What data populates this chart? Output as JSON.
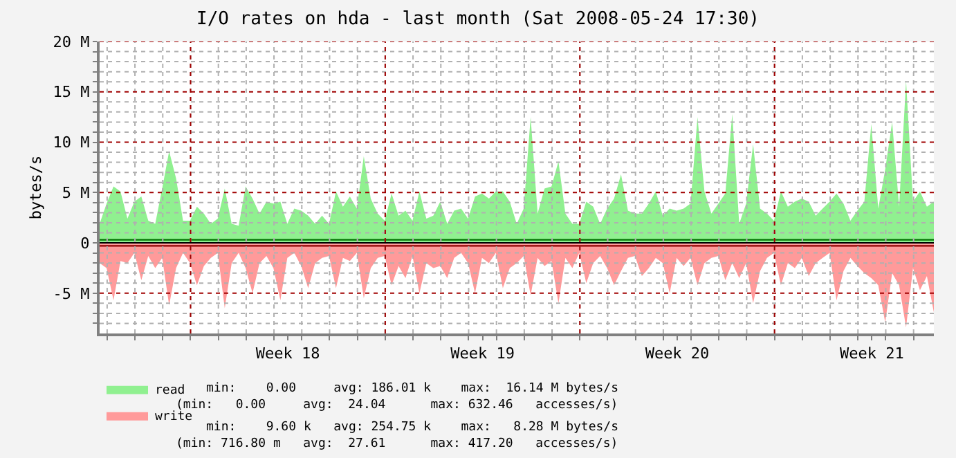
{
  "chart_data": {
    "type": "area",
    "title": "I/O rates on hda - last month (Sat 2008-05-24 17:30)",
    "ylabel": "bytes/s",
    "x": [
      "2008-04-24T17:30",
      "2008-04-24T23:30",
      "2008-04-25T05:30",
      "2008-04-25T11:30",
      "2008-04-25T17:30",
      "2008-04-25T23:30",
      "2008-04-26T05:30",
      "2008-04-26T11:30",
      "2008-04-26T17:30",
      "2008-04-26T23:30",
      "2008-04-27T05:30",
      "2008-04-27T11:30",
      "2008-04-27T17:30",
      "2008-04-27T23:30",
      "2008-04-28T05:30",
      "2008-04-28T11:30",
      "2008-04-28T17:30",
      "2008-04-28T23:30",
      "2008-04-29T05:30",
      "2008-04-29T11:30",
      "2008-04-29T17:30",
      "2008-04-29T23:30",
      "2008-04-30T05:30",
      "2008-04-30T11:30",
      "2008-04-30T17:30",
      "2008-04-30T23:30",
      "2008-05-01T05:30",
      "2008-05-01T11:30",
      "2008-05-01T17:30",
      "2008-05-01T23:30",
      "2008-05-02T05:30",
      "2008-05-02T11:30",
      "2008-05-02T17:30",
      "2008-05-02T23:30",
      "2008-05-03T05:30",
      "2008-05-03T11:30",
      "2008-05-03T17:30",
      "2008-05-03T23:30",
      "2008-05-04T05:30",
      "2008-05-04T11:30",
      "2008-05-04T17:30",
      "2008-05-04T23:30",
      "2008-05-05T05:30",
      "2008-05-05T11:30",
      "2008-05-05T17:30",
      "2008-05-05T23:30",
      "2008-05-06T05:30",
      "2008-05-06T11:30",
      "2008-05-06T17:30",
      "2008-05-06T23:30",
      "2008-05-07T05:30",
      "2008-05-07T11:30",
      "2008-05-07T17:30",
      "2008-05-07T23:30",
      "2008-05-08T05:30",
      "2008-05-08T11:30",
      "2008-05-08T17:30",
      "2008-05-08T23:30",
      "2008-05-09T05:30",
      "2008-05-09T11:30",
      "2008-05-09T17:30",
      "2008-05-09T23:30",
      "2008-05-10T05:30",
      "2008-05-10T11:30",
      "2008-05-10T17:30",
      "2008-05-10T23:30",
      "2008-05-11T05:30",
      "2008-05-11T11:30",
      "2008-05-11T17:30",
      "2008-05-11T23:30",
      "2008-05-12T05:30",
      "2008-05-12T11:30",
      "2008-05-12T17:30",
      "2008-05-12T23:30",
      "2008-05-13T05:30",
      "2008-05-13T11:30",
      "2008-05-13T17:30",
      "2008-05-13T23:30",
      "2008-05-14T05:30",
      "2008-05-14T11:30",
      "2008-05-14T17:30",
      "2008-05-14T23:30",
      "2008-05-15T05:30",
      "2008-05-15T11:30",
      "2008-05-15T17:30",
      "2008-05-15T23:30",
      "2008-05-16T05:30",
      "2008-05-16T11:30",
      "2008-05-16T17:30",
      "2008-05-16T23:30",
      "2008-05-17T05:30",
      "2008-05-17T11:30",
      "2008-05-17T17:30",
      "2008-05-17T23:30",
      "2008-05-18T05:30",
      "2008-05-18T11:30",
      "2008-05-18T17:30",
      "2008-05-18T23:30",
      "2008-05-19T05:30",
      "2008-05-19T11:30",
      "2008-05-19T17:30",
      "2008-05-19T23:30",
      "2008-05-20T05:30",
      "2008-05-20T11:30",
      "2008-05-20T17:30",
      "2008-05-20T23:30",
      "2008-05-21T05:30",
      "2008-05-21T11:30",
      "2008-05-21T17:30",
      "2008-05-21T23:30",
      "2008-05-22T05:30",
      "2008-05-22T11:30",
      "2008-05-22T17:30",
      "2008-05-22T23:30",
      "2008-05-23T05:30",
      "2008-05-23T11:30",
      "2008-05-23T17:30",
      "2008-05-23T23:30",
      "2008-05-24T05:30",
      "2008-05-24T11:30",
      "2008-05-24T17:30"
    ],
    "series": [
      {
        "name": "read",
        "color": "#90f090",
        "values": [
          1.9,
          3.9,
          5.6,
          5.1,
          2.4,
          4.1,
          4.6,
          2.2,
          1.9,
          5.4,
          9.1,
          6.4,
          2.2,
          2.2,
          3.6,
          2.9,
          1.9,
          2.4,
          5.4,
          1.9,
          1.7,
          5.6,
          4.4,
          2.9,
          4.1,
          3.9,
          4.1,
          1.9,
          3.4,
          3.2,
          2.7,
          1.9,
          2.7,
          1.9,
          5.1,
          3.6,
          4.6,
          3.4,
          8.6,
          4.4,
          2.9,
          2.2,
          4.9,
          2.7,
          3.2,
          2.2,
          5.1,
          2.4,
          2.7,
          4.1,
          1.9,
          3.2,
          3.4,
          2.4,
          4.6,
          4.9,
          4.4,
          5.1,
          5.1,
          4.1,
          1.9,
          3.4,
          12.5,
          2.9,
          5.4,
          5.6,
          8.1,
          2.9,
          1.9,
          1.9,
          4.1,
          3.6,
          1.9,
          3.4,
          4.4,
          6.8,
          3.2,
          2.9,
          2.9,
          3.9,
          5.1,
          2.7,
          3.4,
          3.2,
          3.4,
          3.9,
          12.5,
          5.1,
          2.9,
          3.9,
          4.9,
          12.8,
          1.9,
          3.9,
          9.8,
          3.4,
          2.9,
          2.2,
          5.1,
          3.6,
          4.1,
          4.4,
          4.1,
          2.7,
          3.4,
          4.1,
          4.9,
          3.9,
          2.2,
          3.2,
          4.1,
          11.8,
          3.4,
          7.3,
          12.0,
          3.6,
          16.1,
          4.1,
          5.1,
          3.6,
          4.1
        ]
      },
      {
        "name": "write",
        "color": "#ff9a9a",
        "values": [
          -2.0,
          -2.5,
          -5.7,
          -1.8,
          -2.0,
          -1.0,
          -3.7,
          -1.3,
          -2.5,
          -1.5,
          -6.2,
          -2.5,
          -1.0,
          -2.0,
          -4.2,
          -2.3,
          -1.5,
          -1.0,
          -6.5,
          -2.0,
          -1.0,
          -2.5,
          -5.0,
          -2.0,
          -1.3,
          -2.5,
          -5.7,
          -1.5,
          -1.0,
          -2.3,
          -4.5,
          -2.0,
          -1.5,
          -1.3,
          -4.5,
          -1.5,
          -1.8,
          -1.0,
          -5.5,
          -2.5,
          -1.5,
          -1.3,
          -4.2,
          -2.3,
          -3.5,
          -1.3,
          -5.0,
          -2.0,
          -2.5,
          -2.3,
          -3.5,
          -1.5,
          -1.0,
          -2.0,
          -5.0,
          -1.5,
          -2.0,
          -1.0,
          -4.5,
          -2.5,
          -2.0,
          -1.3,
          -5.2,
          -1.5,
          -2.3,
          -1.8,
          -6.0,
          -1.5,
          -2.5,
          -1.0,
          -4.0,
          -2.0,
          -1.3,
          -2.5,
          -4.2,
          -2.8,
          -1.5,
          -1.3,
          -3.3,
          -2.5,
          -1.5,
          -2.0,
          -5.0,
          -1.5,
          -2.3,
          -1.5,
          -4.2,
          -2.0,
          -1.5,
          -1.3,
          -3.7,
          -2.0,
          -3.5,
          -2.0,
          -6.0,
          -2.8,
          -1.5,
          -1.0,
          -4.2,
          -2.0,
          -2.5,
          -1.5,
          -3.3,
          -2.0,
          -1.5,
          -1.0,
          -5.7,
          -2.8,
          -1.5,
          -2.3,
          -3.0,
          -3.5,
          -4.2,
          -7.9,
          -3.0,
          -4.2,
          -8.4,
          -2.5,
          -4.7,
          -3.3,
          -6.9
        ]
      },
      {
        "type": "line",
        "color": "#007000",
        "x": [
          "2008-04-24T17:30",
          "2008-05-24T17:30"
        ],
        "values": [
          0.3,
          0.3
        ]
      },
      {
        "type": "line",
        "color": "#900000",
        "x": [
          "2008-04-24T17:30",
          "2008-05-24T17:30"
        ],
        "values": [
          -0.3,
          -0.3
        ]
      }
    ],
    "xlim": [
      "2008-04-24T17:30",
      "2008-05-24T17:30"
    ],
    "xticks": [
      {
        "value": "2008-04-25",
        "label": null
      },
      {
        "value": "2008-04-26",
        "label": null
      },
      {
        "value": "2008-04-27",
        "label": null
      },
      {
        "value": "2008-04-28",
        "label": null
      },
      {
        "value": "2008-04-29",
        "label": null
      },
      {
        "value": "2008-04-30",
        "label": null
      },
      {
        "value": "2008-05-01",
        "label": null
      },
      {
        "value": "2008-05-02",
        "label": null
      },
      {
        "value": "2008-05-03",
        "label": null
      },
      {
        "value": "2008-05-04",
        "label": null
      },
      {
        "value": "2008-05-05",
        "label": null
      },
      {
        "value": "2008-05-06",
        "label": null
      },
      {
        "value": "2008-05-07",
        "label": null
      },
      {
        "value": "2008-05-08",
        "label": null
      },
      {
        "value": "2008-05-09",
        "label": null
      },
      {
        "value": "2008-05-10",
        "label": null
      },
      {
        "value": "2008-05-11",
        "label": null
      },
      {
        "value": "2008-05-12",
        "label": null
      },
      {
        "value": "2008-05-13",
        "label": null
      },
      {
        "value": "2008-05-14",
        "label": null
      },
      {
        "value": "2008-05-15",
        "label": null
      },
      {
        "value": "2008-05-16",
        "label": null
      },
      {
        "value": "2008-05-17",
        "label": null
      },
      {
        "value": "2008-05-18",
        "label": null
      },
      {
        "value": "2008-05-19",
        "label": null
      },
      {
        "value": "2008-05-20",
        "label": null
      },
      {
        "value": "2008-05-21",
        "label": null
      },
      {
        "value": "2008-05-22",
        "label": null
      },
      {
        "value": "2008-05-23",
        "label": null
      },
      {
        "value": "2008-05-24",
        "label": null
      },
      {
        "value": "2008-05-01T12:00",
        "label": "Week 18"
      },
      {
        "value": "2008-05-08T12:00",
        "label": "Week 19"
      },
      {
        "value": "2008-05-15T12:00",
        "label": "Week 20"
      },
      {
        "value": "2008-05-22T12:00",
        "label": "Week 21"
      }
    ],
    "ylim": [
      -9,
      20
    ],
    "yticks": [
      {
        "value": -5,
        "label": "-5 M"
      },
      0,
      {
        "value": 5,
        "label": "5 M"
      },
      {
        "value": 10,
        "label": "10 M"
      },
      {
        "value": 15,
        "label": "15 M"
      },
      {
        "value": 20,
        "label": "20 M"
      },
      {
        "value": -8,
        "label": null
      },
      {
        "value": -7,
        "label": null
      },
      {
        "value": -6,
        "label": null
      },
      {
        "value": -4,
        "label": null
      },
      {
        "value": -3,
        "label": null
      },
      {
        "value": -2,
        "label": null
      },
      {
        "value": -1,
        "label": null
      },
      {
        "value": 1,
        "label": null
      },
      {
        "value": 2,
        "label": null
      },
      {
        "value": 3,
        "label": null
      },
      {
        "value": 4,
        "label": null
      },
      {
        "value": 6,
        "label": null
      },
      {
        "value": 7,
        "label": null
      },
      {
        "value": 8,
        "label": null
      },
      {
        "value": 9,
        "label": null
      },
      {
        "value": 11,
        "label": null
      },
      {
        "value": 12,
        "label": null
      },
      {
        "value": 13,
        "label": null
      },
      {
        "value": 14,
        "label": null
      },
      {
        "value": 16,
        "label": null
      },
      {
        "value": 17,
        "label": null
      },
      {
        "value": 18,
        "label": null
      },
      {
        "value": 19,
        "label": null
      }
    ],
    "ref_lines": [
      {
        "axis": "y",
        "value": 0,
        "color": "#000000",
        "line_style": "solid"
      },
      {
        "axis": "y",
        "value": -5,
        "color": "#a00000",
        "line_style": "dotted"
      },
      {
        "axis": "y",
        "value": 5,
        "color": "#a00000",
        "line_style": "dotted"
      },
      {
        "axis": "y",
        "value": 10,
        "color": "#a00000",
        "line_style": "dotted"
      },
      {
        "axis": "y",
        "value": 15,
        "color": "#a00000",
        "line_style": "dotted"
      },
      {
        "axis": "y",
        "value": 20,
        "color": "#a00000",
        "line_style": "dotted"
      },
      {
        "axis": "x",
        "value": "2008-04-28",
        "color": "#a00000",
        "line_style": "dotted"
      },
      {
        "axis": "x",
        "value": "2008-05-05",
        "color": "#a00000",
        "line_style": "dotted"
      },
      {
        "axis": "x",
        "value": "2008-05-12",
        "color": "#a00000",
        "line_style": "dotted"
      },
      {
        "axis": "x",
        "value": "2008-05-19",
        "color": "#a00000",
        "line_style": "dotted"
      }
    ],
    "annotations": [
      "min:    0.00     avg: 186.01 k    max:  16.14 M bytes/s",
      "(min:   0.00     avg:  24.04      max: 632.46   accesses/s)",
      "min:    9.60 k   avg: 254.75 k    max:   8.28 M bytes/s",
      "(min: 716.80 m   avg:  27.61      max: 417.20   accesses/s)"
    ],
    "grid": true,
    "legend": "bottom left",
    "line_style": "solid",
    "marker": "none"
  }
}
